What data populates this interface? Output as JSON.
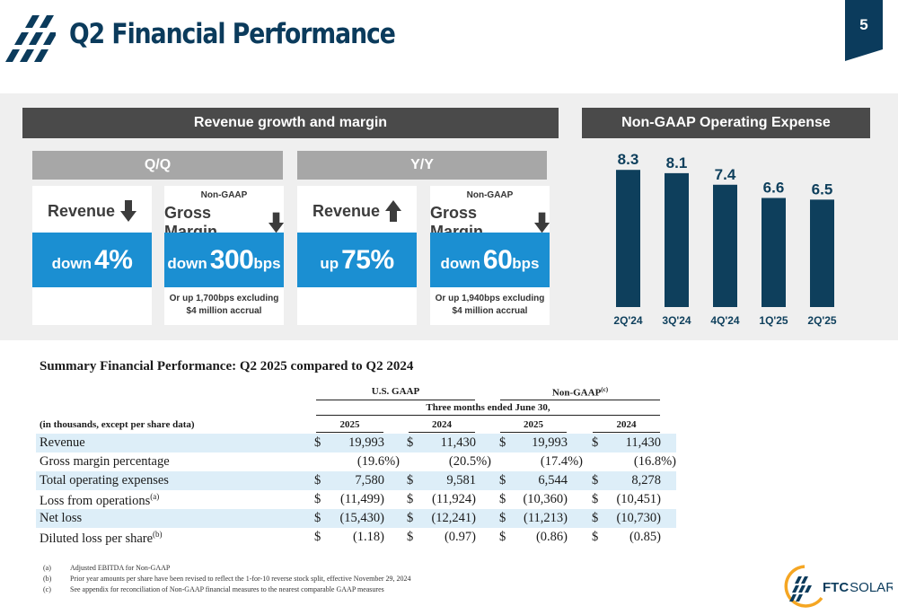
{
  "header": {
    "title": "Q2 Financial Performance",
    "page_number": "5"
  },
  "colors": {
    "navy": "#0b3b5c",
    "bar_fill": "#0e3f5c",
    "accent_blue": "#1b8fd2",
    "dark_header": "#4a4a4a",
    "grey_header": "#a7a7a7",
    "orange": "#f5a623"
  },
  "revenue_section": {
    "title": "Revenue growth and margin",
    "qq_label": "Q/Q",
    "yy_label": "Y/Y",
    "cards": [
      {
        "nongaap": "",
        "metric": "Revenue",
        "arrow": "arrow-down",
        "word": "down",
        "value": "4%",
        "unit": "",
        "note1": "",
        "note2": ""
      },
      {
        "nongaap": "Non-GAAP",
        "metric": "Gross Margin",
        "arrow": "arrow-down",
        "word": "down",
        "value": "300",
        "unit": "bps",
        "note1": "Or up 1,700bps excluding",
        "note2": "$4 million accrual"
      },
      {
        "nongaap": "",
        "metric": "Revenue",
        "arrow": "arrow-up",
        "word": "up",
        "value": "75%",
        "unit": "",
        "note1": "",
        "note2": ""
      },
      {
        "nongaap": "Non-GAAP",
        "metric": "Gross Margin",
        "arrow": "arrow-down",
        "word": "down",
        "value": "60",
        "unit": "bps",
        "note1": "Or up 1,940bps excluding",
        "note2": "$4 million accrual"
      }
    ]
  },
  "chart_data": {
    "type": "bar",
    "title": "Non-GAAP Operating Expense",
    "categories": [
      "2Q'24",
      "3Q'24",
      "4Q'24",
      "1Q'25",
      "2Q'25"
    ],
    "values": [
      8.3,
      8.1,
      7.4,
      6.6,
      6.5
    ],
    "data_labels": [
      "8.3",
      "8.1",
      "7.4",
      "6.6",
      "6.5"
    ],
    "ylim": [
      0,
      8.8
    ],
    "grid": false,
    "legend": "none"
  },
  "table": {
    "title": "Summary Financial Performance: Q2 2025 compared to Q2 2024",
    "group_gaap": "U.S. GAAP",
    "group_nongaap": "Non-GAAP",
    "group_nongaap_sup": "(c)",
    "period": "Three months ended June 30,",
    "unit_label": "(in thousands, except per share data)",
    "years": [
      "2025",
      "2024",
      "2025",
      "2024"
    ],
    "rows": [
      {
        "label": "Revenue",
        "sup": "",
        "dollar": true,
        "values": [
          "19,993",
          "11,430",
          "19,993",
          "11,430"
        ]
      },
      {
        "label": "Gross margin percentage",
        "sup": "",
        "dollar": false,
        "values": [
          "(19.6%)",
          "(20.5%)",
          "(17.4%)",
          "(16.8%)"
        ]
      },
      {
        "label": "Total operating expenses",
        "sup": "",
        "dollar": true,
        "values": [
          "7,580",
          "9,581",
          "6,544",
          "8,278"
        ]
      },
      {
        "label": "Loss from operations",
        "sup": "(a)",
        "dollar": true,
        "values": [
          "(11,499)",
          "(11,924)",
          "(10,360)",
          "(10,451)"
        ]
      },
      {
        "label": "Net loss",
        "sup": "",
        "dollar": true,
        "values": [
          "(15,430)",
          "(12,241)",
          "(11,213)",
          "(10,730)"
        ]
      },
      {
        "label": "Diluted loss per share",
        "sup": "(b)",
        "dollar": true,
        "values": [
          "(1.18)",
          "(0.97)",
          "(0.86)",
          "(0.85)"
        ]
      }
    ],
    "dollar_sign": "$"
  },
  "footnotes": [
    {
      "key": "(a)",
      "text": "Adjusted EBITDA for Non-GAAP"
    },
    {
      "key": "(b)",
      "text": "Prior year amounts per share have been revised to reflect the 1-for-10 reverse stock split, effective November 29, 2024"
    },
    {
      "key": "(c)",
      "text": "See appendix for reconciliation of Non-GAAP financial measures to the nearest comparable GAAP measures"
    }
  ],
  "brand": {
    "name_bold": "FTC",
    "name_rest": "SOLAR"
  }
}
